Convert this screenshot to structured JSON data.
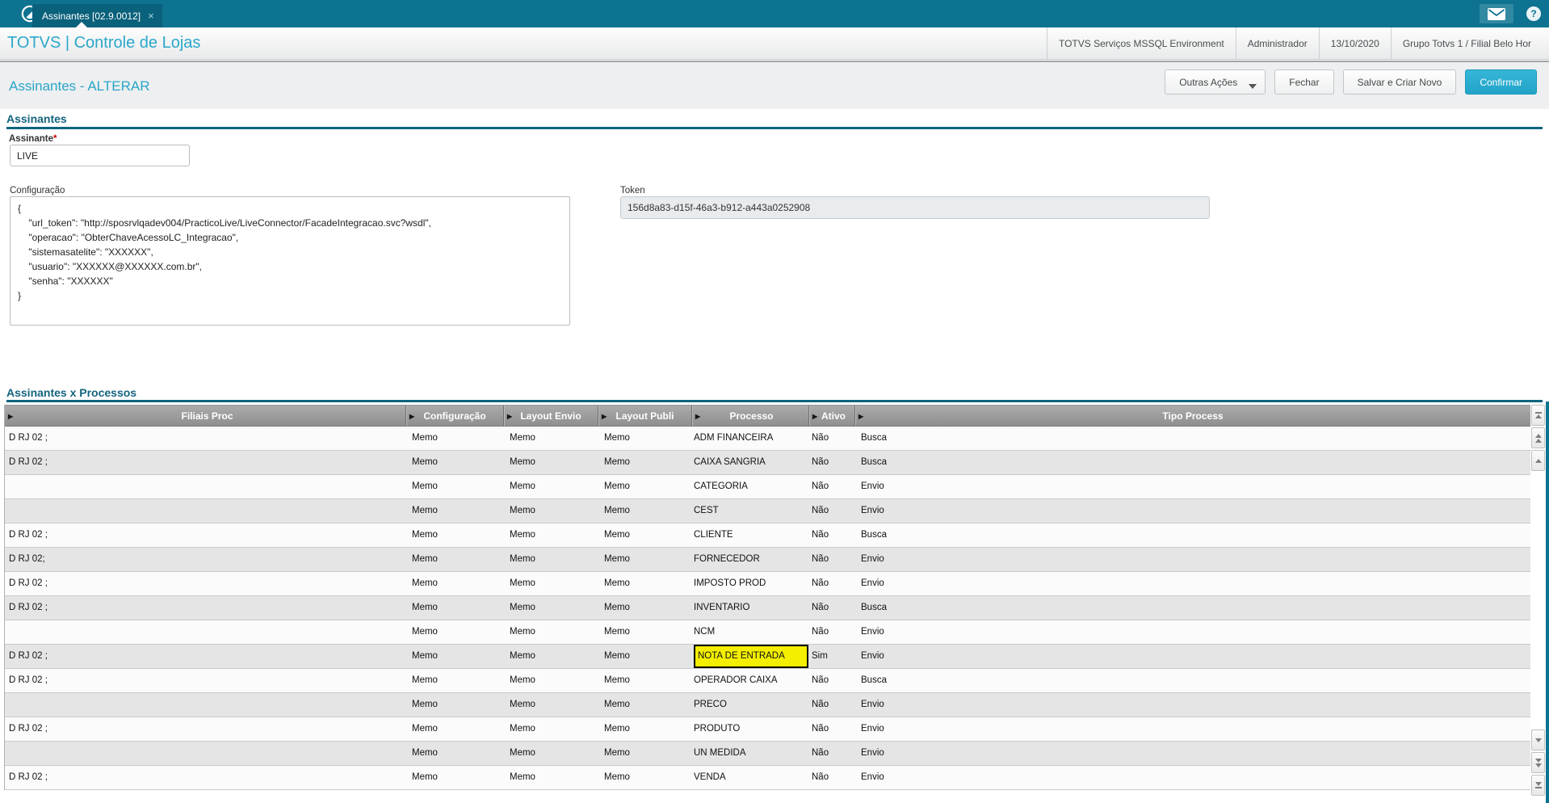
{
  "window": {
    "tab_label": "Assinantes [02.9.0012]",
    "tab_close": "×",
    "help_glyph": "?"
  },
  "brand": {
    "title": "TOTVS | Controle de Lojas"
  },
  "environment": {
    "items": [
      "TOTVS Serviços MSSQL Environment",
      "Administrador",
      "13/10/2020",
      "Grupo Totvs 1 / Filial Belo Hor"
    ]
  },
  "page": {
    "title": "Assinantes - ALTERAR"
  },
  "toolbar": {
    "outras_acoes": "Outras Ações",
    "fechar": "Fechar",
    "salvar_criar": "Salvar e Criar Novo",
    "confirmar": "Confirmar"
  },
  "form": {
    "section_title": "Assinantes",
    "assinante": {
      "label": "Assinante",
      "required_mark": "*",
      "value": "LIVE"
    },
    "configuracao": {
      "label": "Configuração",
      "value": "{\n    \"url_token\": \"http://sposrvlqadev004/PracticoLive/LiveConnector/FacadeIntegracao.svc?wsdl\",\n    \"operacao\": \"ObterChaveAcessoLC_Integracao\",\n    \"sistemasatelite\": \"XXXXXX\",\n    \"usuario\": \"XXXXXX@XXXXXX.com.br\",\n    \"senha\": \"XXXXXX\"\n}"
    },
    "token": {
      "label": "Token",
      "value": "156d8a83-d15f-46a3-b912-a443a0252908"
    }
  },
  "process_table": {
    "section_title": "Assinantes x Processos",
    "columns": [
      "Filiais Proc",
      "Configuração",
      "Layout Envio",
      "Layout Publi",
      "Processo",
      "Ativo",
      "Tipo Process"
    ],
    "rows": [
      {
        "filiais_proc": "D RJ 02 ;",
        "configuracao": "Memo",
        "layout_envio": "Memo",
        "layout_publi": "Memo",
        "processo": "ADM FINANCEIRA",
        "ativo": "Não",
        "tipo_process": "Busca",
        "highlighted": false
      },
      {
        "filiais_proc": "D RJ 02 ;",
        "configuracao": "Memo",
        "layout_envio": "Memo",
        "layout_publi": "Memo",
        "processo": "CAIXA SANGRIA",
        "ativo": "Não",
        "tipo_process": "Busca",
        "highlighted": false
      },
      {
        "filiais_proc": "",
        "configuracao": "Memo",
        "layout_envio": "Memo",
        "layout_publi": "Memo",
        "processo": "CATEGORIA",
        "ativo": "Não",
        "tipo_process": "Envio",
        "highlighted": false
      },
      {
        "filiais_proc": "",
        "configuracao": "Memo",
        "layout_envio": "Memo",
        "layout_publi": "Memo",
        "processo": "CEST",
        "ativo": "Não",
        "tipo_process": "Envio",
        "highlighted": false
      },
      {
        "filiais_proc": "D RJ 02 ;",
        "configuracao": "Memo",
        "layout_envio": "Memo",
        "layout_publi": "Memo",
        "processo": "CLIENTE",
        "ativo": "Não",
        "tipo_process": "Busca",
        "highlighted": false
      },
      {
        "filiais_proc": "D RJ 02;",
        "configuracao": "Memo",
        "layout_envio": "Memo",
        "layout_publi": "Memo",
        "processo": "FORNECEDOR",
        "ativo": "Não",
        "tipo_process": "Envio",
        "highlighted": false
      },
      {
        "filiais_proc": "D RJ 02 ;",
        "configuracao": "Memo",
        "layout_envio": "Memo",
        "layout_publi": "Memo",
        "processo": "IMPOSTO PROD",
        "ativo": "Não",
        "tipo_process": "Envio",
        "highlighted": false
      },
      {
        "filiais_proc": "D RJ 02 ;",
        "configuracao": "Memo",
        "layout_envio": "Memo",
        "layout_publi": "Memo",
        "processo": "INVENTARIO",
        "ativo": "Não",
        "tipo_process": "Busca",
        "highlighted": false
      },
      {
        "filiais_proc": "",
        "configuracao": "Memo",
        "layout_envio": "Memo",
        "layout_publi": "Memo",
        "processo": "NCM",
        "ativo": "Não",
        "tipo_process": "Envio",
        "highlighted": false
      },
      {
        "filiais_proc": "D RJ 02 ;",
        "configuracao": "Memo",
        "layout_envio": "Memo",
        "layout_publi": "Memo",
        "processo": "NOTA DE ENTRADA",
        "ativo": "Sim",
        "tipo_process": "Envio",
        "highlighted": true
      },
      {
        "filiais_proc": "D RJ 02 ;",
        "configuracao": "Memo",
        "layout_envio": "Memo",
        "layout_publi": "Memo",
        "processo": "OPERADOR CAIXA",
        "ativo": "Não",
        "tipo_process": "Busca",
        "highlighted": false
      },
      {
        "filiais_proc": "",
        "configuracao": "Memo",
        "layout_envio": "Memo",
        "layout_publi": "Memo",
        "processo": "PRECO",
        "ativo": "Não",
        "tipo_process": "Envio",
        "highlighted": false
      },
      {
        "filiais_proc": "D RJ 02 ;",
        "configuracao": "Memo",
        "layout_envio": "Memo",
        "layout_publi": "Memo",
        "processo": "PRODUTO",
        "ativo": "Não",
        "tipo_process": "Envio",
        "highlighted": false
      },
      {
        "filiais_proc": "",
        "configuracao": "Memo",
        "layout_envio": "Memo",
        "layout_publi": "Memo",
        "processo": "UN MEDIDA",
        "ativo": "Não",
        "tipo_process": "Envio",
        "highlighted": false
      },
      {
        "filiais_proc": "D RJ 02 ;",
        "configuracao": "Memo",
        "layout_envio": "Memo",
        "layout_publi": "Memo",
        "processo": "VENDA",
        "ativo": "Não",
        "tipo_process": "Envio",
        "highlighted": false
      }
    ]
  },
  "colors": {
    "accent_teal": "#0d7391",
    "brand_cyan": "#2aa6c9",
    "section_teal": "#14647e",
    "confirm_button": "#2bb0d4",
    "highlight_yellow": "#f4ef00",
    "table_header_gray": "#9b9b9b",
    "row_alt_gray": "#e5e5e5"
  }
}
